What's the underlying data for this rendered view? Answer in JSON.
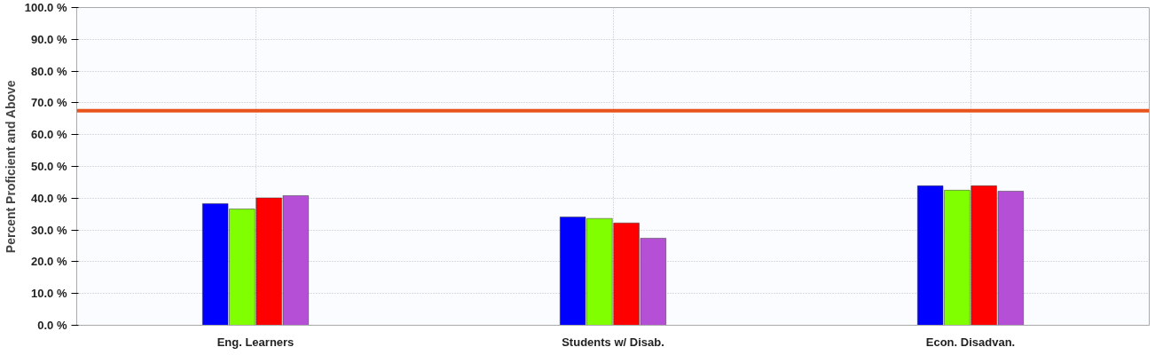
{
  "chart_data": {
    "type": "bar",
    "ylabel": "Percent Proficient and Above",
    "categories": [
      "Eng. Learners",
      "Students w/ Disab.",
      "Econ. Disadvan."
    ],
    "series": [
      {
        "color": "#0000ff",
        "values": [
          38.3,
          34.1,
          43.9
        ]
      },
      {
        "color": "#80ff00",
        "values": [
          36.6,
          33.6,
          42.5
        ]
      },
      {
        "color": "#ff0000",
        "values": [
          40.1,
          32.2,
          43.9
        ]
      },
      {
        "color": "#b44fd6",
        "values": [
          40.8,
          27.4,
          42.2
        ]
      }
    ],
    "ylim": [
      0,
      100
    ],
    "yticks": [
      {
        "value": 0,
        "label": "0.0 %"
      },
      {
        "value": 10,
        "label": "10.0 %"
      },
      {
        "value": 20,
        "label": "20.0 %"
      },
      {
        "value": 30,
        "label": "30.0 %"
      },
      {
        "value": 40,
        "label": "40.0 %"
      },
      {
        "value": 50,
        "label": "50.0 %"
      },
      {
        "value": 60,
        "label": "60.0 %"
      },
      {
        "value": 70,
        "label": "70.0 %"
      },
      {
        "value": 80,
        "label": "80.0 %"
      },
      {
        "value": 90,
        "label": "90.0 %"
      },
      {
        "value": 100,
        "label": "100.0 %"
      }
    ],
    "ref_lines": [
      {
        "axis": "y",
        "value": 67.5,
        "color": "#e8541c"
      }
    ],
    "grid": true
  }
}
